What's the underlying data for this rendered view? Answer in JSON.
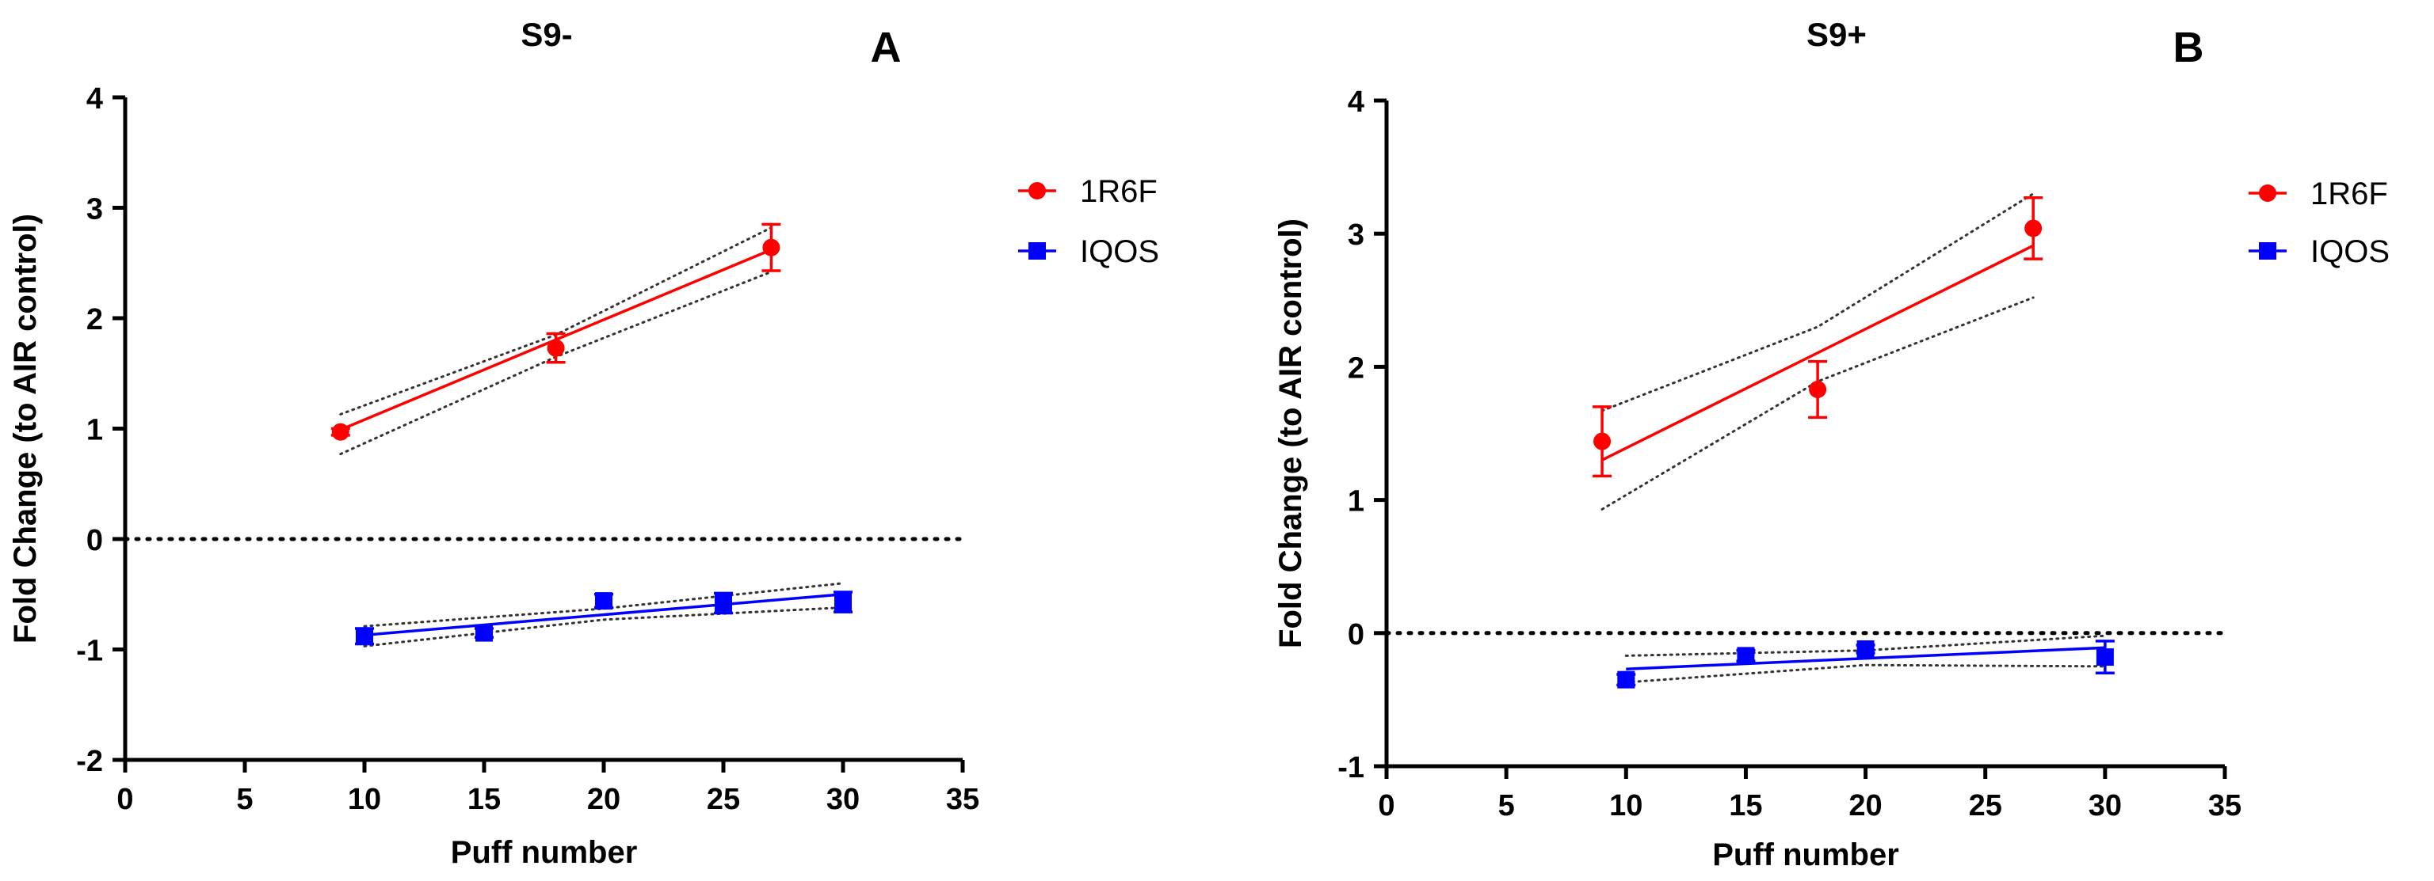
{
  "chart_data": [
    {
      "type": "scatter",
      "title": "S9-",
      "panel_label": "A",
      "xlabel": "Puff number",
      "ylabel": "Fold Change (to AIR control)",
      "xlim": [
        0,
        35
      ],
      "ylim": [
        -2,
        4
      ],
      "xticks": [
        "0",
        "5",
        "10",
        "15",
        "20",
        "25",
        "30",
        "35"
      ],
      "yticks": [
        "-2",
        "-1",
        "0",
        "1",
        "2",
        "3",
        "4"
      ],
      "reference_line_y": 0,
      "legend_position": "right",
      "series": [
        {
          "name": "1R6F",
          "color": "#ff0000",
          "marker": "circle",
          "points": [
            {
              "x": 9,
              "y": 0.97,
              "err": 0.03
            },
            {
              "x": 18,
              "y": 1.73,
              "err": 0.13
            },
            {
              "x": 27,
              "y": 2.64,
              "err": 0.21
            }
          ],
          "fit": {
            "x": [
              9,
              27
            ],
            "y": [
              0.99,
              2.62
            ]
          },
          "ci_upper": {
            "x": [
              9,
              18,
              27
            ],
            "y": [
              1.13,
              1.85,
              2.82
            ]
          },
          "ci_lower": {
            "x": [
              9,
              18,
              27
            ],
            "y": [
              0.77,
              1.65,
              2.42
            ]
          }
        },
        {
          "name": "IQOS",
          "color": "#0000ff",
          "marker": "square",
          "points": [
            {
              "x": 10,
              "y": -0.88,
              "err": 0.07
            },
            {
              "x": 15,
              "y": -0.85,
              "err": 0.04
            },
            {
              "x": 20,
              "y": -0.56,
              "err": 0.06
            },
            {
              "x": 25,
              "y": -0.58,
              "err": 0.09
            },
            {
              "x": 30,
              "y": -0.57,
              "err": 0.09
            }
          ],
          "fit": {
            "x": [
              10,
              30
            ],
            "y": [
              -0.87,
              -0.5
            ]
          },
          "ci_upper": {
            "x": [
              10,
              20,
              30
            ],
            "y": [
              -0.79,
              -0.63,
              -0.4
            ]
          },
          "ci_lower": {
            "x": [
              10,
              20,
              30
            ],
            "y": [
              -0.97,
              -0.73,
              -0.62
            ]
          }
        }
      ]
    },
    {
      "type": "scatter",
      "title": "S9+",
      "panel_label": "B",
      "xlabel": "Puff number",
      "ylabel": "Fold Change (to AIR control)",
      "xlim": [
        0,
        35
      ],
      "ylim": [
        -1,
        4
      ],
      "xticks": [
        "0",
        "5",
        "10",
        "15",
        "20",
        "25",
        "30",
        "35"
      ],
      "yticks": [
        "-1",
        "0",
        "1",
        "2",
        "3",
        "4"
      ],
      "reference_line_y": 0,
      "legend_position": "right",
      "series": [
        {
          "name": "1R6F",
          "color": "#ff0000",
          "marker": "circle",
          "points": [
            {
              "x": 9,
              "y": 1.44,
              "err": 0.26
            },
            {
              "x": 18,
              "y": 1.83,
              "err": 0.21
            },
            {
              "x": 27,
              "y": 3.04,
              "err": 0.23
            }
          ],
          "fit": {
            "x": [
              9,
              27
            ],
            "y": [
              1.3,
              2.91
            ]
          },
          "ci_upper": {
            "x": [
              9,
              18,
              27
            ],
            "y": [
              1.67,
              2.3,
              3.3
            ]
          },
          "ci_lower": {
            "x": [
              9,
              18,
              27
            ],
            "y": [
              0.93,
              1.89,
              2.52
            ]
          }
        },
        {
          "name": "IQOS",
          "color": "#0000ff",
          "marker": "square",
          "points": [
            {
              "x": 10,
              "y": -0.35,
              "err": 0.04
            },
            {
              "x": 15,
              "y": -0.17,
              "err": 0.04
            },
            {
              "x": 20,
              "y": -0.12,
              "err": 0.03
            },
            {
              "x": 30,
              "y": -0.18,
              "err": 0.12
            }
          ],
          "fit": {
            "x": [
              10,
              30
            ],
            "y": [
              -0.27,
              -0.11
            ]
          },
          "ci_upper": {
            "x": [
              10,
              20,
              30
            ],
            "y": [
              -0.17,
              -0.13,
              -0.02
            ]
          },
          "ci_lower": {
            "x": [
              10,
              20,
              30
            ],
            "y": [
              -0.37,
              -0.24,
              -0.25
            ]
          }
        }
      ]
    }
  ]
}
